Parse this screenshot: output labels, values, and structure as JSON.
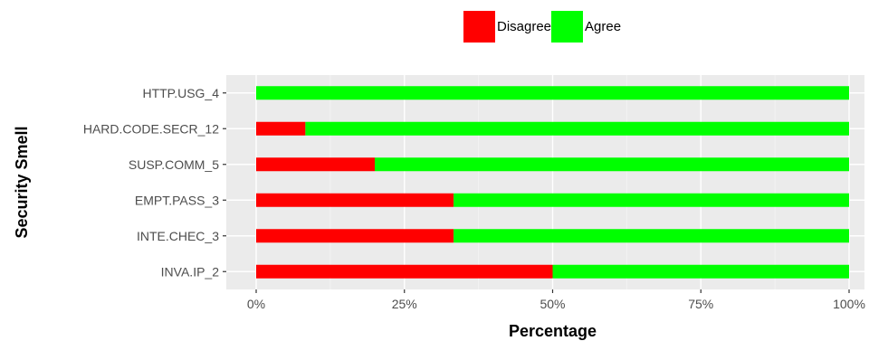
{
  "chart_data": {
    "type": "bar",
    "orientation": "horizontal",
    "stacked": true,
    "xlabel": "Percentage",
    "ylabel": "Security Smell",
    "xlim": [
      0,
      100
    ],
    "x_ticks": [
      "0%",
      "25%",
      "50%",
      "75%",
      "100%"
    ],
    "categories": [
      "HTTP.USG_4",
      "HARD.CODE.SECR_12",
      "SUSP.COMM_5",
      "EMPT.PASS_3",
      "INTE.CHEC_3",
      "INVA.IP_2"
    ],
    "series": [
      {
        "name": "Disagree",
        "color": "#ff0000",
        "values": [
          0,
          8.3,
          20,
          33.3,
          33.3,
          50
        ]
      },
      {
        "name": "Agree",
        "color": "#00ff00",
        "values": [
          100,
          91.7,
          80,
          66.7,
          66.7,
          50
        ]
      }
    ],
    "legend_position": "top",
    "grid": true,
    "panel_background": "#ebebeb"
  }
}
